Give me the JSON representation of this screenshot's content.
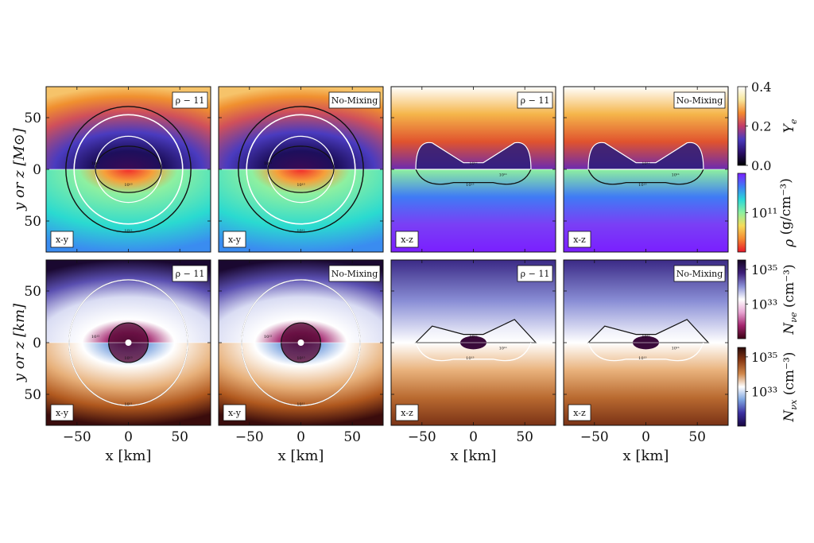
{
  "figure": {
    "rows": [
      {
        "y_label": "y or z [M⊙]",
        "colorbars": [
          {
            "symbol": "Y",
            "sub": "e",
            "unit": "",
            "ticks": [
              "0.4",
              "0.2",
              "0.0"
            ],
            "colormap": "ye"
          },
          {
            "symbol": "ρ",
            "sub": "",
            "unit": "(g/cm⁻³)",
            "ticks": [
              "10¹¹"
            ],
            "colormap": "rho"
          }
        ]
      },
      {
        "y_label": "y or z [km]",
        "colorbars": [
          {
            "symbol": "N",
            "sub": "νe",
            "unit": "(cm⁻³)",
            "ticks": [
              "10³⁵",
              "10³³"
            ],
            "colormap": "nue"
          },
          {
            "symbol": "N",
            "sub": "νx",
            "unit": "(cm⁻³)",
            "ticks": [
              "10³⁵",
              "10³³"
            ],
            "colormap": "nux"
          }
        ]
      }
    ],
    "panels": [
      {
        "row": 0,
        "col": 0,
        "model": "ρ − 11",
        "plane": "x-y"
      },
      {
        "row": 0,
        "col": 1,
        "model": "No-Mixing",
        "plane": "x-y"
      },
      {
        "row": 0,
        "col": 2,
        "model": "ρ − 11",
        "plane": "x-z"
      },
      {
        "row": 0,
        "col": 3,
        "model": "No-Mixing",
        "plane": "x-z"
      },
      {
        "row": 1,
        "col": 0,
        "model": "ρ − 11",
        "plane": "x-y"
      },
      {
        "row": 1,
        "col": 1,
        "model": "No-Mixing",
        "plane": "x-y"
      },
      {
        "row": 1,
        "col": 2,
        "model": "ρ − 11",
        "plane": "x-z"
      },
      {
        "row": 1,
        "col": 3,
        "model": "No-Mixing",
        "plane": "x-z"
      }
    ],
    "x_label": "x [km]",
    "contour_labels": [
      "10¹²",
      "10¹³",
      "10¹¹"
    ]
  },
  "chart_data": {
    "type": "heatmap",
    "x_ticks": [
      -50,
      0,
      50
    ],
    "y_ticks_top": [
      50,
      0,
      50
    ],
    "y_ticks_bottom": [
      50,
      0,
      50
    ],
    "xlim": [
      -80,
      80
    ],
    "ylim": [
      -80,
      80
    ],
    "contour_levels_rho": [
      100000000000.0,
      1000000000000.0,
      10000000000000.0
    ],
    "colormaps": {
      "ye": [
        "#000000",
        "#2b0f6b",
        "#4b3bbf",
        "#c23b68",
        "#f48a2f",
        "#f7e69b",
        "#ffffff"
      ],
      "rho": [
        "#7a1fff",
        "#3f7bf5",
        "#2ad8d8",
        "#8ef0a0",
        "#f5dc5a",
        "#f58a32",
        "#e8172a"
      ],
      "nue": [
        "#160521",
        "#3e1f7a",
        "#8a8fd6",
        "#ffffff",
        "#e7a3d1",
        "#a3246e",
        "#3a0214"
      ],
      "nux": [
        "#2b0a0a",
        "#8a3a15",
        "#d0874a",
        "#ffffff",
        "#7da4e0",
        "#3b2fa0",
        "#160541"
      ]
    }
  }
}
